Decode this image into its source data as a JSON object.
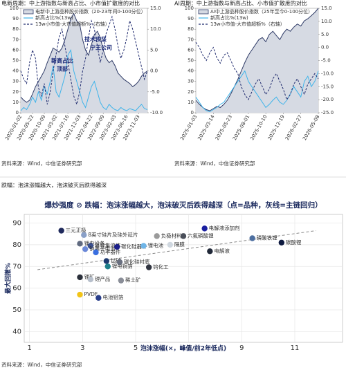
{
  "headings": [
    "电新周期：中上游指数与新高占比、小市值扩散度的对比",
    "AI周期：中上游指数与新高占比、小市值扩散度的对比",
    "跌幅：泡沫涨幅越大，泡沫破灭后跌得越深"
  ],
  "sources": [
    "资料来源：Wind，中信证券研究部",
    "资料来源：Wind，中信证券研究部",
    "资料来源：Wind，中信证券研究部"
  ],
  "chart_data": [
    {
      "type": "line",
      "categories": [
        "2020-01-02",
        null,
        null,
        null,
        "2020-05-22",
        null,
        null,
        null,
        "2020-10-09",
        null,
        null,
        null,
        "2021-03-02",
        null,
        null,
        null,
        "2021-07-16",
        null,
        null,
        null,
        "2021-12-03",
        null,
        null,
        null,
        "2022-04-22",
        null,
        null,
        null,
        "2022-09-09",
        null,
        null,
        null,
        "2023-02-03",
        null,
        null,
        null,
        "2023-06-16",
        null,
        null,
        null,
        "2023-11-03",
        null,
        null,
        null
      ],
      "series": [
        {
          "name": "电新中上游品种股价指数（20-23年间0-100分位）",
          "color": "#d6dae3",
          "edge_color": "#2e3a66",
          "style": "area",
          "values": [
            15,
            12,
            10,
            12,
            18,
            25,
            30,
            35,
            40,
            48,
            55,
            62,
            60,
            58,
            62,
            70,
            80,
            90,
            95,
            88,
            85,
            70,
            60,
            55,
            65,
            75,
            78,
            72,
            60,
            52,
            48,
            50,
            45,
            38,
            35,
            32,
            30,
            28,
            25,
            27,
            30,
            35,
            38,
            40
          ]
        },
        {
          "name": "新高占比%(13w)",
          "color": "#3fb4ea",
          "style": "line",
          "values": [
            2,
            5,
            3,
            8,
            15,
            10,
            20,
            12,
            25,
            18,
            30,
            45,
            20,
            15,
            25,
            35,
            55,
            60,
            40,
            30,
            20,
            10,
            5,
            15,
            25,
            30,
            20,
            10,
            5,
            3,
            8,
            5,
            3,
            2,
            5,
            3,
            2,
            4,
            3,
            2,
            5,
            8,
            4,
            3
          ]
        },
        {
          "name": "13w小市值-大市值超额%（右轴）",
          "color": "#1f2a6e",
          "style": "dashed",
          "axis": "y2",
          "values": [
            0,
            -2,
            -3,
            2,
            5,
            3,
            -4,
            -6,
            -3,
            -8,
            -5,
            0,
            4,
            8,
            10,
            6,
            2,
            -2,
            -6,
            -8,
            -5,
            0,
            3,
            8,
            12,
            10,
            6,
            2,
            5,
            9,
            11,
            13,
            10,
            6,
            3,
            5,
            8,
            12,
            10,
            7,
            4,
            1,
            -2,
            0
          ]
        }
      ],
      "annotations": [
        "新高占比",
        "顶部",
        "技术攻坚",
        "宁王公司"
      ],
      "ylim": [
        0,
        100
      ],
      "yticks": [
        0,
        10,
        20,
        30,
        40,
        50,
        60,
        70,
        80,
        90,
        100
      ],
      "y2lim": [
        -10,
        15
      ],
      "y2ticks": [
        {
          "value": -10,
          "label": "-10.0"
        },
        {
          "value": -5,
          "label": "-5.0"
        },
        {
          "value": 0,
          "label": "0.0"
        },
        {
          "value": 5,
          "label": "5.0"
        },
        {
          "value": 10,
          "label": "10.0"
        },
        {
          "value": 15,
          "label": "15.0"
        }
      ]
    },
    {
      "type": "line",
      "categories": [
        "2025-01-03",
        null,
        null,
        null,
        null,
        "2025-03-14",
        null,
        null,
        null,
        null,
        "2025-05-23",
        null,
        null,
        null,
        null,
        "2025-08-01",
        null,
        null,
        null,
        null,
        "2025-10-10",
        null,
        null,
        null,
        null,
        "2025-12-19",
        null,
        null,
        null,
        null,
        "2026-02-27",
        null,
        null,
        null,
        null,
        "2026-05-08"
      ],
      "series": [
        {
          "name": "AI中上游品种股价指数（25年至今0-100分位）",
          "color": "#d6dae3",
          "edge_color": "#2e3a66",
          "style": "area",
          "values": [
            12,
            8,
            5,
            3,
            2,
            4,
            6,
            5,
            8,
            12,
            18,
            25,
            32,
            40,
            48,
            55,
            60,
            65,
            70,
            72,
            68,
            75,
            78,
            74,
            70,
            76,
            80,
            78,
            82,
            85,
            83,
            88,
            90,
            93,
            96,
            100
          ]
        },
        {
          "name": "新高占比%(13w)",
          "color": "#3fb4ea",
          "style": "line",
          "values": [
            15,
            10,
            5,
            2,
            1,
            3,
            5,
            8,
            10,
            15,
            20,
            25,
            30,
            35,
            40,
            30,
            25,
            20,
            15,
            10,
            5,
            8,
            12,
            15,
            10,
            8,
            12,
            18,
            25,
            20,
            15,
            30,
            35,
            25,
            30,
            40
          ]
        },
        {
          "name": "13w小市值-大市值超额%（右轴）",
          "color": "#1f2a6e",
          "style": "dashed",
          "axis": "y2",
          "values": [
            2,
            0,
            -3,
            -5,
            -2,
            0,
            -4,
            -6,
            -3,
            -2,
            -5,
            -8,
            -10,
            -15,
            -18,
            -20,
            -17,
            -14,
            -12,
            -15,
            -18,
            -16,
            -12,
            -10,
            -13,
            -16,
            -20,
            -18,
            -14,
            -12,
            -15,
            -18,
            -14,
            -12,
            -10,
            -12
          ]
        }
      ],
      "ylim": [
        0,
        100
      ],
      "yticks": [
        0,
        10,
        20,
        30,
        40,
        50,
        60,
        70,
        80,
        90,
        100
      ],
      "y2lim": [
        -25,
        15
      ],
      "y2ticks": [
        {
          "value": -25,
          "label": "-25.0"
        },
        {
          "value": -20,
          "label": "-20.0"
        },
        {
          "value": -15,
          "label": "-15.0"
        },
        {
          "value": -10,
          "label": "-10.0"
        },
        {
          "value": -5,
          "label": "-5.0"
        },
        {
          "value": 0,
          "label": "0.0"
        },
        {
          "value": 5,
          "label": "5.0"
        },
        {
          "value": 10,
          "label": "10.0"
        },
        {
          "value": 15,
          "label": "15.0"
        }
      ]
    },
    {
      "type": "scatter",
      "subtitle": "爆炒强度 ⊘ 跌幅：泡沫涨幅越大，泡沫破灭后跌得越深（点=品种，灰线=主链回归）",
      "xlabel": "泡沫涨幅(×，峰值/前2年低点)",
      "ylabel": "最大回撤%",
      "labels": [
        "三元正极",
        "8英寸硅片及硅外延片",
        "锂电设备",
        "复合集流体",
        "钠离子电池",
        "碳化硅器件",
        "锂电池",
        "隔膜",
        "负极材料",
        "六氟磷酸锂",
        "电解液添加剂",
        "电解液",
        "磷酸铁锂",
        "碳酸锂",
        "功率器件",
        "钴矿",
        "锂电铜箔",
        "碳化硅衬底",
        "钨化工",
        "稀土矿",
        "锂矿",
        "锂产品",
        "PVDF",
        "电池铝箔"
      ],
      "x": [
        2.2,
        3.05,
        2.9,
        3.3,
        3.1,
        4.3,
        5.3,
        6.3,
        5.8,
        6.8,
        7.6,
        7.8,
        9.4,
        10.5,
        3.5,
        3.9,
        3.95,
        4.4,
        5.5,
        4.45,
        2.9,
        3.3,
        2.9,
        3.6
      ],
      "values": [
        86.5,
        84.5,
        80.5,
        79.5,
        78,
        79,
        79.5,
        80,
        84,
        84,
        87.5,
        77,
        83,
        81,
        76.5,
        72.5,
        70,
        72,
        69.6,
        63.5,
        65,
        64,
        57,
        55.5
      ],
      "colors": [
        "#1f2a5c",
        "#8aa0c8",
        "#606a80",
        "#3a4f8f",
        "#6a88d8",
        "#1b1f8a",
        "#6fb5e8",
        "#d0d8e0",
        "#9a9a9a",
        "#4a4f5a",
        "#1a1fa0",
        "#202838",
        "#4d6fa0",
        "#0e1a40",
        "#3a6fe0",
        "#1e3a70",
        "#1e7f8a",
        "#6a7080",
        "#303440",
        "#8a8e98",
        "#2a2f3a",
        "#b8c0cc",
        "#f2c418",
        "#2a3f8a"
      ],
      "trend": {
        "x": [
          1.3,
          11.8
        ],
        "values": [
          68.5,
          86.5
        ],
        "color": "#8a8a8a"
      },
      "xlim": [
        0.8,
        12.8
      ],
      "xticks": [
        1,
        3,
        5,
        7,
        9,
        11
      ],
      "ylim": [
        35,
        94
      ],
      "yticks": [
        40,
        50,
        60,
        70,
        80,
        90
      ],
      "grid": true
    }
  ]
}
